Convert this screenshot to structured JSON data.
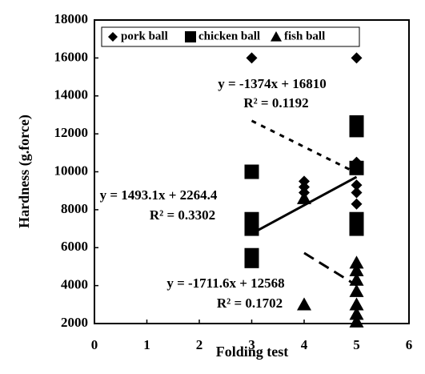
{
  "chart_data": {
    "type": "scatter",
    "xlabel": "Folding test",
    "ylabel": "Hardness (g.force)",
    "xlim": [
      0,
      6
    ],
    "xticks": [
      0,
      1,
      2,
      3,
      4,
      5,
      6
    ],
    "ylim": [
      2000,
      18000
    ],
    "yticks": [
      2000,
      4000,
      6000,
      8000,
      10000,
      12000,
      14000,
      16000,
      18000
    ],
    "legend": "top",
    "series": [
      {
        "name": "pork ball",
        "marker": "diamond",
        "color": "#000000",
        "x": [
          3,
          4,
          4,
          4,
          5,
          5,
          5,
          5,
          5,
          5
        ],
        "values": [
          16000,
          9500,
          9200,
          8900,
          16000,
          10500,
          10300,
          9300,
          8900,
          8300
        ],
        "trendline": {
          "equation": "y = -1374x + 16810",
          "r2": "R² = 0.1192",
          "slope": -1374,
          "intercept": 16810,
          "style": "dotted"
        }
      },
      {
        "name": "chicken ball",
        "marker": "square",
        "color": "#000000",
        "x": [
          3,
          3,
          3,
          3,
          3,
          5,
          5,
          5,
          5,
          5
        ],
        "values": [
          10000,
          7500,
          7000,
          5600,
          5300,
          12600,
          12200,
          10200,
          7500,
          7000
        ],
        "trendline": {
          "equation": "y = 1493.1x + 2264.4",
          "r2": "R² = 0.3302",
          "slope": 1493.1,
          "intercept": 2264.4,
          "style": "solid"
        }
      },
      {
        "name": "fish ball",
        "marker": "triangle",
        "color": "#000000",
        "x": [
          4,
          4,
          5,
          5,
          5,
          5,
          5,
          5,
          5
        ],
        "values": [
          8600,
          3000,
          5200,
          4800,
          4300,
          3700,
          3000,
          2500,
          2100
        ],
        "trendline": {
          "equation": "y = -1711.6x + 12568",
          "r2": "R² = 0.1702",
          "slope": -1711.6,
          "intercept": 12568,
          "style": "dashed"
        }
      }
    ]
  }
}
